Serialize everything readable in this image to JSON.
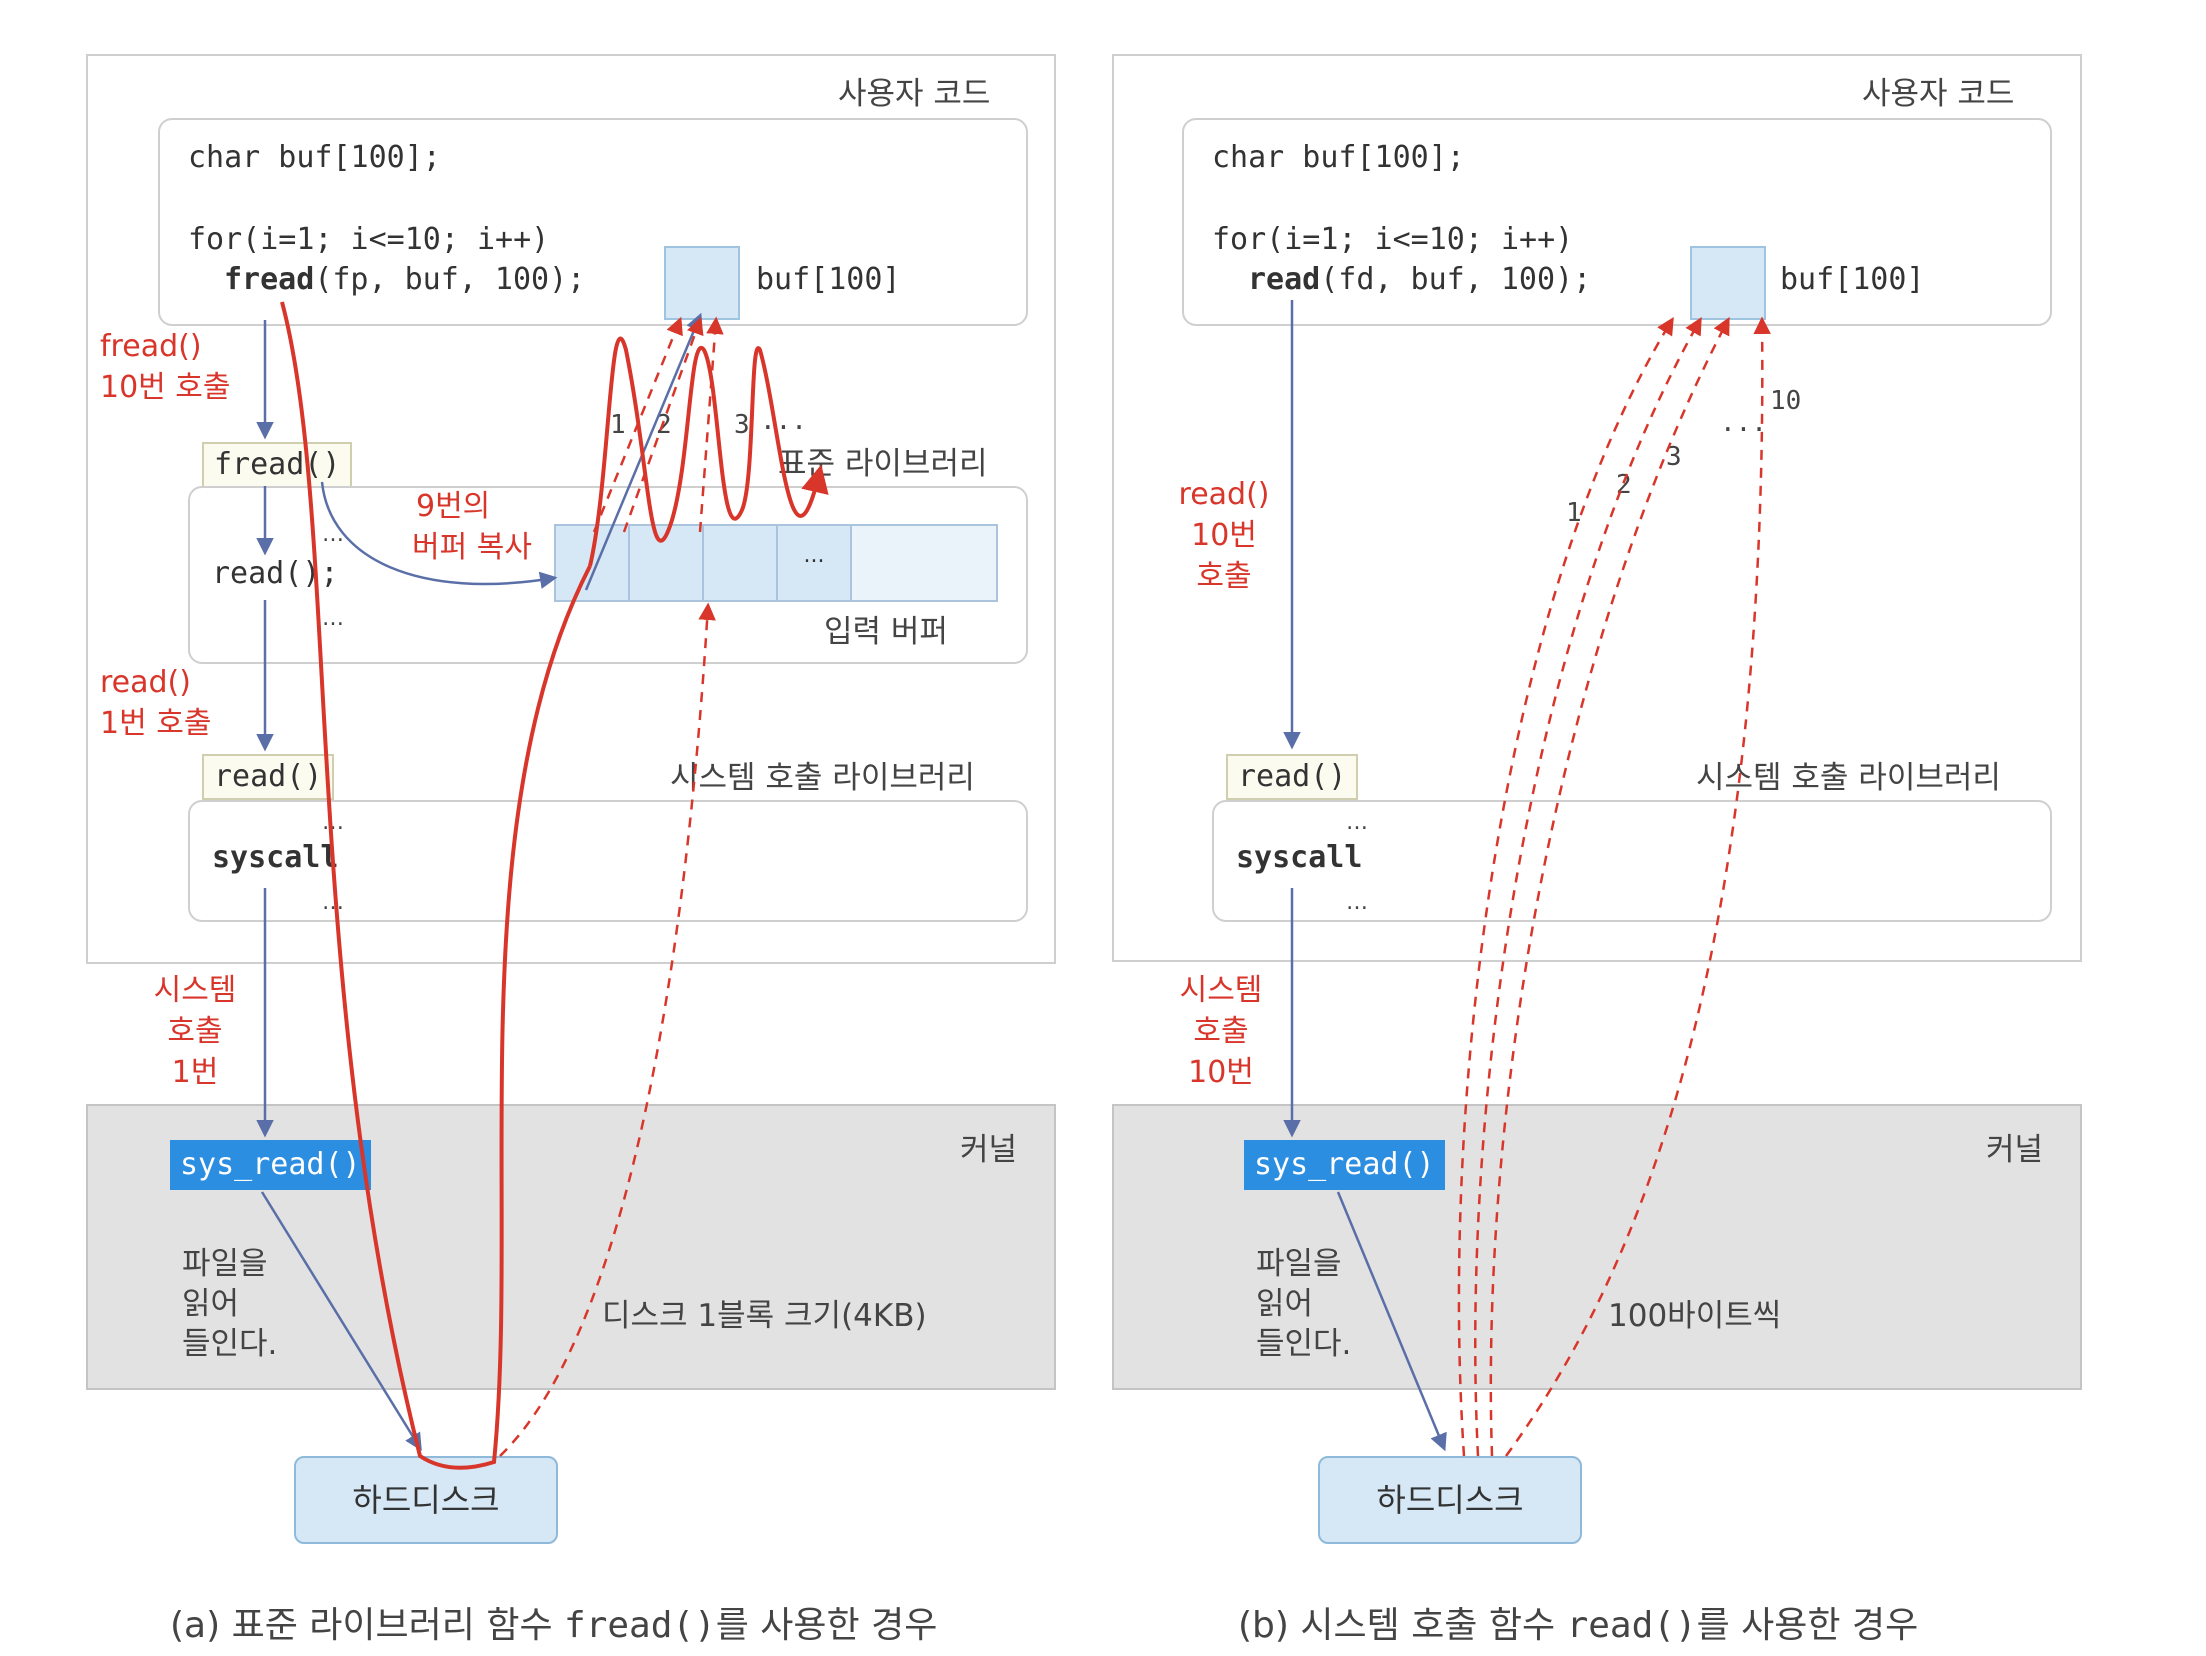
{
  "left": {
    "user_code_label": "사용자 코드",
    "code_line1": "char buf[100];",
    "code_line2": "for(i=1; i<=10; i++)",
    "code_line3_fn": "fread",
    "code_line3_args": "(fp, buf, 100);",
    "buf_label": "buf[100]",
    "call_note": [
      "fread()",
      "10번 호출"
    ],
    "stdlib_tag": "fread()",
    "stdlib_label": "표준 라이브러리",
    "stdlib_read": "read();",
    "copy_note": [
      "9번의",
      "버퍼 복사"
    ],
    "buffer_mid": "...",
    "input_buffer_label": "입력 버퍼",
    "copy_numbers": [
      "1",
      "2",
      "3",
      "..."
    ],
    "read_note": [
      "read()",
      "1번 호출"
    ],
    "syscall_tag": "read()",
    "syscall_lib_label": "시스템 호출 라이브러리",
    "syscall_word": "syscall",
    "sys_note": [
      "시스템",
      "호출",
      "1번"
    ],
    "kernel_label": "커널",
    "sys_read": "sys_read()",
    "read_file_note": [
      "파일을",
      "읽어",
      "들인다."
    ],
    "disk_block_note": "디스크 1블록 크기(4KB)",
    "disk_label": "하드디스크",
    "caption_prefix": "(a) 표준 라이브러리 함수 ",
    "caption_code": "fread()",
    "caption_suffix": "를 사용한 경우"
  },
  "right": {
    "user_code_label": "사용자 코드",
    "code_line1": "char buf[100];",
    "code_line2": "for(i=1; i<=10; i++)",
    "code_line3_fn": "read",
    "code_line3_args": "(fd, buf, 100);",
    "buf_label": "buf[100]",
    "call_note": [
      "read()",
      "10번",
      "호출"
    ],
    "transfer_numbers": [
      "1",
      "2",
      "3",
      "...",
      "10"
    ],
    "syscall_tag": "read()",
    "syscall_lib_label": "시스템 호출 라이브러리",
    "syscall_word": "syscall",
    "sys_note": [
      "시스템",
      "호출",
      "10번"
    ],
    "kernel_label": "커널",
    "sys_read": "sys_read()",
    "read_file_note": [
      "파일을",
      "읽어",
      "들인다."
    ],
    "bytes_note": "100바이트씩",
    "disk_label": "하드디스크",
    "caption_prefix": "(b) 시스템 호출 함수 ",
    "caption_code": "read()",
    "caption_suffix": "를 사용한 경우"
  },
  "colors": {
    "red": "#d9362b",
    "blue_arrow": "#5a6fa8",
    "sys_read_bg": "#2b8ee0",
    "kernel_bg": "#e2e2e2",
    "buffer_fill": "#d6e8f5"
  }
}
